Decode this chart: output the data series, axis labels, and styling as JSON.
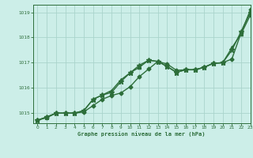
{
  "title": "Graphe pression niveau de la mer (hPa)",
  "background_color": "#cceee8",
  "grid_color": "#aad4cc",
  "line_color": "#2d6e3a",
  "xlim": [
    -0.5,
    23
  ],
  "ylim": [
    1014.6,
    1019.3
  ],
  "yticks": [
    1015,
    1016,
    1017,
    1018,
    1019
  ],
  "xticks": [
    0,
    1,
    2,
    3,
    4,
    5,
    6,
    7,
    8,
    9,
    10,
    11,
    12,
    13,
    14,
    15,
    16,
    17,
    18,
    19,
    20,
    21,
    22,
    23
  ],
  "series": [
    {
      "x": [
        0,
        1,
        2,
        3,
        4,
        5,
        6,
        7,
        8,
        9,
        10,
        11,
        12,
        13,
        14,
        15,
        16,
        17,
        18,
        19,
        20,
        21,
        22,
        23
      ],
      "y": [
        1014.72,
        1014.82,
        1015.0,
        1015.0,
        1015.0,
        1015.05,
        1015.3,
        1015.55,
        1015.7,
        1015.8,
        1016.05,
        1016.45,
        1016.75,
        1017.05,
        1016.95,
        1016.7,
        1016.72,
        1016.72,
        1016.82,
        1016.98,
        1017.0,
        1017.15,
        1018.2,
        1019.1
      ],
      "marker": "D",
      "markersize": 2.5,
      "linewidth": 1.0
    },
    {
      "x": [
        0,
        1,
        2,
        3,
        4,
        5,
        6,
        7,
        8,
        9,
        10,
        11,
        12,
        13,
        14,
        15,
        16,
        17,
        18,
        19,
        20,
        21,
        22,
        23
      ],
      "y": [
        1014.72,
        1014.85,
        1015.0,
        1015.0,
        1015.0,
        1015.1,
        1015.55,
        1015.72,
        1015.82,
        1016.25,
        1016.6,
        1016.9,
        1017.1,
        1017.05,
        1016.85,
        1016.62,
        1016.72,
        1016.72,
        1016.82,
        1016.98,
        1017.0,
        1017.5,
        1018.25,
        1019.0
      ],
      "marker": "*",
      "markersize": 4.5,
      "linewidth": 1.0
    },
    {
      "x": [
        0,
        1,
        2,
        3,
        4,
        5,
        6,
        7,
        8,
        9,
        10,
        11,
        12,
        13,
        14,
        15,
        16,
        17,
        18,
        19,
        20,
        21,
        22,
        23
      ],
      "y": [
        1014.72,
        1014.85,
        1015.0,
        1015.0,
        1015.0,
        1015.1,
        1015.55,
        1015.72,
        1015.9,
        1016.32,
        1016.6,
        1016.82,
        1017.1,
        1017.05,
        1016.85,
        1016.62,
        1016.72,
        1016.72,
        1016.82,
        1016.98,
        1017.0,
        1017.6,
        1018.15,
        1018.9
      ],
      "marker": "^",
      "markersize": 3.0,
      "linewidth": 1.0
    }
  ]
}
